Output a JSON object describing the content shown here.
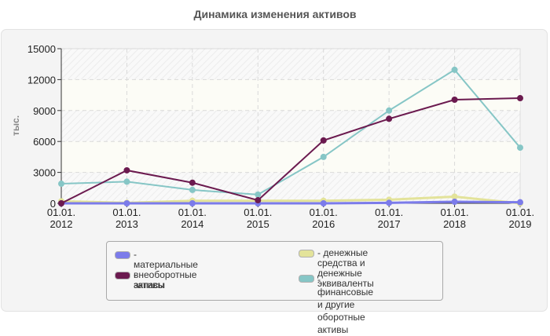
{
  "title": "Динамика изменения активов",
  "colors": {
    "panel_bg": "#f4f4f4",
    "material_assets": "#7b7bea",
    "inventories": "#6b1a4f",
    "cash": "#e3e39a",
    "financial_other": "#86c6c6"
  },
  "chart_data": {
    "type": "line",
    "title": "Динамика изменения активов",
    "xlabel": "",
    "ylabel": "тыс.",
    "ylim": [
      0,
      15000
    ],
    "yticks": [
      0,
      3000,
      6000,
      9000,
      12000,
      15000
    ],
    "grid": true,
    "legend_position": "bottom",
    "categories": [
      "01.01.\n2012",
      "01.01.\n2013",
      "01.01.\n2014",
      "01.01.\n2015",
      "01.01.\n2016",
      "01.01.\n2017",
      "01.01.\n2018",
      "01.01.\n2019"
    ],
    "series": [
      {
        "name": "материальные внеоборотные активы",
        "color": "#7b7bea",
        "values": [
          0,
          0,
          0,
          0,
          0,
          50,
          150,
          100
        ]
      },
      {
        "name": "запасы",
        "color": "#6b1a4f",
        "values": [
          0,
          3200,
          2000,
          300,
          6100,
          8200,
          10050,
          10200
        ]
      },
      {
        "name": "денежные средства и денежные эквиваленты",
        "color": "#e3e39a",
        "values": [
          200,
          50,
          250,
          250,
          250,
          350,
          650,
          0
        ]
      },
      {
        "name": "финансовые и другие оборотные активы",
        "color": "#86c6c6",
        "values": [
          1900,
          2100,
          1300,
          850,
          4500,
          9000,
          12950,
          5400
        ]
      }
    ]
  },
  "legend": {
    "items": [
      {
        "label": "- материальные внеоборотные\nактивы"
      },
      {
        "label": "- запасы"
      },
      {
        "label": "- денежные средства и\nденежные эквиваленты"
      },
      {
        "label": "- финансовые и другие\nоборотные активы"
      }
    ]
  }
}
